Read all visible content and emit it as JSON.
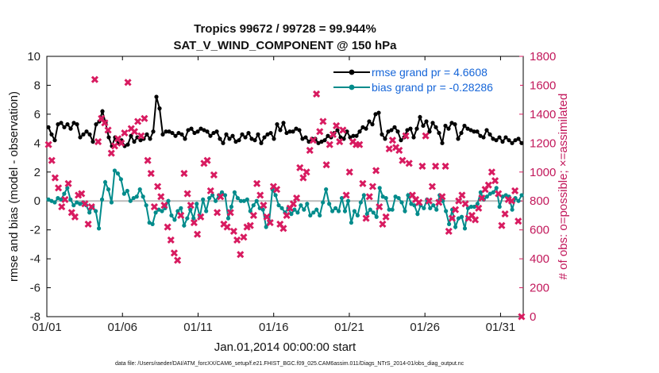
{
  "chart_data": {
    "type": "line",
    "title": "Tropics 99672 / 99728 = 99.944%",
    "subtitle": "SAT_V_WIND_COMPONENT @ 150 hPa",
    "xlabel": "Jan.01,2014 00:00:00 start",
    "ylabel": "rmse and bias (model - observation)",
    "ylabel_right": "# of obs: o=possible; ×=assimilated",
    "footnote": "data file: /Users/raeder/DAI/ATM_forcXX/CAM6_setup/f.e21.FHIST_BGC.f09_025.CAM6assim.011/Diags_NTrS_2014-01/obs_diag_output.nc",
    "xlim": [
      0,
      31.5
    ],
    "ylim": [
      -8,
      10
    ],
    "ylim_right": [
      0,
      1800
    ],
    "x_ticks": [
      0,
      5,
      10,
      15,
      20,
      25,
      30
    ],
    "x_tick_labels": [
      "01/01",
      "01/06",
      "01/11",
      "01/16",
      "01/21",
      "01/26",
      "01/31"
    ],
    "y_ticks": [
      -8,
      -6,
      -4,
      -2,
      0,
      2,
      4,
      6,
      8,
      10
    ],
    "y_tick_labels": [
      "-8",
      "-6",
      "-4",
      "-2",
      "0",
      "2",
      "4",
      "6",
      "8",
      "10"
    ],
    "y_right_ticks": [
      0,
      200,
      400,
      600,
      800,
      1000,
      1200,
      1400,
      1600,
      1800
    ],
    "y_right_tick_labels": [
      "0",
      "200",
      "400",
      "600",
      "800",
      "1000",
      "1200",
      "1400",
      "1600",
      "1800"
    ],
    "legend": [
      {
        "label": "rmse grand pr = 4.6608",
        "color": "#000000"
      },
      {
        "label": "bias grand pr = -0.28286",
        "color": "#008b8b"
      }
    ],
    "legend_location": "top-right",
    "colors": {
      "rmse": "#000000",
      "bias": "#008b8b",
      "obs": "#d81b60",
      "zero_line": "#bbbbbb"
    },
    "series": [
      {
        "name": "rmse",
        "axis": "left",
        "values": [
          5.1,
          4.6,
          4.2,
          5.3,
          5.4,
          5.1,
          5.3,
          5.0,
          5.4,
          5.3,
          4.4,
          4.6,
          4.8,
          4.6,
          4.1,
          5.3,
          5.5,
          6.2,
          5.4,
          4.4,
          3.8,
          4.4,
          4.0,
          4.2,
          3.8,
          3.9,
          4.5,
          4.1,
          4.4,
          4.2,
          4.3,
          4.6,
          4.3,
          4.8,
          7.2,
          6.4,
          4.6,
          4.8,
          4.8,
          4.7,
          4.5,
          4.7,
          4.6,
          4.3,
          4.9,
          5.0,
          4.7,
          4.8,
          5.0,
          4.9,
          4.8,
          4.5,
          4.7,
          4.8,
          4.3,
          4.0,
          4.6,
          4.3,
          4.5,
          4.1,
          4.2,
          4.6,
          4.4,
          4.7,
          4.3,
          4.2,
          4.6,
          4.0,
          4.4,
          4.6,
          4.7,
          4.3,
          5.3,
          4.9,
          5.4,
          4.7,
          4.8,
          4.8,
          5.0,
          4.9,
          4.3,
          4.4,
          4.1,
          4.3,
          4.3,
          4.0,
          4.1,
          4.2,
          4.5,
          4.4,
          4.7,
          4.9,
          4.4,
          4.3,
          4.8,
          4.4,
          4.5,
          4.5,
          4.8,
          5.1,
          5.0,
          5.5,
          5.3,
          6.0,
          6.1,
          4.6,
          4.3,
          4.8,
          4.9,
          5.1,
          4.8,
          4.2,
          4.4,
          4.9,
          5.0,
          4.4,
          5.0,
          5.8,
          5.2,
          5.5,
          4.8,
          5.4,
          5.1,
          4.7,
          4.0,
          5.2,
          5.0,
          5.4,
          5.3,
          4.3,
          4.7,
          5.2,
          5.0,
          4.9,
          4.8,
          4.8,
          4.5,
          4.4,
          4.9,
          4.6,
          4.3,
          4.2,
          4.4,
          4.1,
          4.4,
          4.2,
          4.0,
          4.2,
          4.3,
          4.0
        ]
      },
      {
        "name": "bias",
        "axis": "left",
        "values": [
          0.1,
          0.0,
          -0.1,
          0.2,
          0.1,
          0.5,
          0.9,
          0.1,
          -0.3,
          -0.1,
          -0.2,
          -0.1,
          -0.3,
          -0.8,
          -0.4,
          -0.7,
          -1.9,
          0.1,
          1.3,
          0.8,
          -0.1,
          2.1,
          1.9,
          1.5,
          0.5,
          0.7,
          0.0,
          0.2,
          0.3,
          0.8,
          0.3,
          -0.3,
          -1.5,
          -1.6,
          -0.8,
          -0.6,
          -0.7,
          -0.5,
          0.0,
          -1.0,
          -1.3,
          -0.7,
          -0.5,
          -1.7,
          -1.2,
          -0.6,
          -1.2,
          -0.2,
          -1.1,
          0.1,
          -0.7,
          0.2,
          0.4,
          0.0,
          0.4,
          0.6,
          0.4,
          -1.2,
          -0.4,
          0.6,
          0.2,
          0.0,
          0.0,
          0.1,
          -0.7,
          -0.3,
          0.0,
          -0.5,
          -0.6,
          -1.8,
          -1.4,
          0.8,
          0.4,
          -0.3,
          -0.5,
          -0.8,
          -0.5,
          -0.9,
          -0.6,
          -0.8,
          -0.3,
          -0.6,
          -0.2,
          -1.0,
          -0.8,
          -0.6,
          -1.0,
          -0.1,
          0.8,
          -0.2,
          -0.7,
          -0.5,
          -0.7,
          0.2,
          -0.7,
          0.0,
          -1.5,
          -0.7,
          -1.0,
          -0.1,
          0.4,
          -0.9,
          -0.6,
          -0.8,
          -1.1,
          0.9,
          0.3,
          0.2,
          -0.6,
          -0.6,
          0.3,
          0.2,
          -0.1,
          -0.7,
          0.4,
          -0.2,
          -0.3,
          -0.9,
          -0.3,
          -0.5,
          0.1,
          -0.5,
          -0.3,
          -0.6,
          0.4,
          0.0,
          -0.7,
          -1.6,
          -0.6,
          -1.8,
          -1.2,
          -1.1,
          -1.9,
          -0.5,
          -0.4,
          -0.4,
          -0.2,
          0.6,
          0.1,
          0.3,
          0.5,
          0.6,
          0.9,
          -0.4,
          0.3,
          0.4,
          0.3,
          -0.6,
          0.2,
          0.0,
          0.4
        ]
      },
      {
        "name": "obs_assimilated",
        "axis": "right",
        "values": [
          1190,
          1080,
          960,
          890,
          760,
          810,
          920,
          720,
          690,
          840,
          850,
          780,
          640,
          760,
          1640,
          1210,
          1370,
          1340,
          1290,
          1130,
          1180,
          1230,
          1200,
          1270,
          1620,
          1300,
          1280,
          1350,
          1250,
          1370,
          1080,
          990,
          760,
          900,
          830,
          770,
          620,
          530,
          440,
          390,
          700,
          990,
          850,
          770,
          650,
          570,
          690,
          1060,
          1080,
          870,
          980,
          720,
          830,
          640,
          620,
          720,
          590,
          530,
          430,
          550,
          620,
          630,
          700,
          920,
          840,
          770,
          690,
          650,
          900,
          880,
          640,
          610,
          700,
          750,
          780,
          820,
          1030,
          960,
          1000,
          1150,
          1220,
          1540,
          1280,
          1350,
          1050,
          1190,
          1260,
          1320,
          1210,
          1290,
          840,
          1000,
          1210,
          1190,
          1190,
          920,
          680,
          830,
          900,
          1010,
          760,
          640,
          690,
          1160,
          1220,
          1170,
          1150,
          1080,
          1250,
          1060,
          840,
          810,
          790,
          1040,
          1250,
          800,
          900,
          1040,
          790,
          830,
          1040,
          590,
          680,
          740,
          800,
          840,
          780,
          680,
          700,
          670,
          750,
          820,
          880,
          910,
          1000,
          940,
          850,
          630,
          710,
          810,
          800,
          870,
          660,
          0
        ]
      }
    ]
  }
}
